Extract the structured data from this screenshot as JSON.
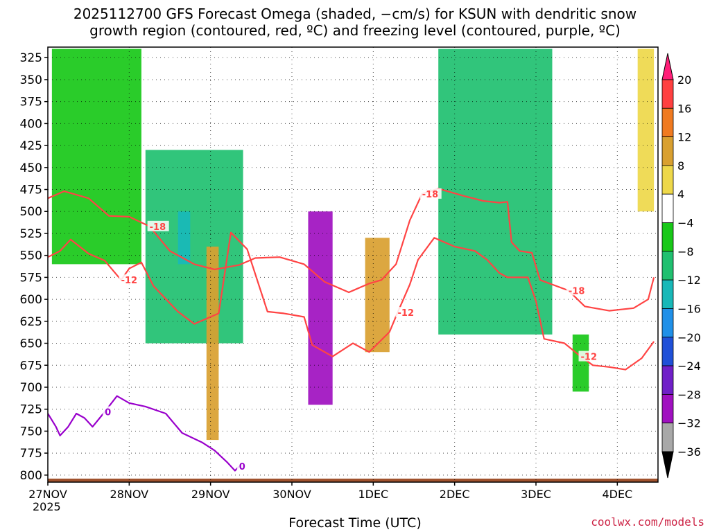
{
  "header": {
    "title_line1": "2025112700 GFS Forecast Omega (shaded, −cm/s) for KSUN with dendritic snow",
    "title_line2": "growth region (contoured, red, ºC) and freezing level (contoured, purple, ºC)"
  },
  "footer": {
    "xlabel": "Forecast Time (UTC)",
    "credit": "coolwx.com/models",
    "year": "2025"
  },
  "chart_data": {
    "type": "heatmap",
    "title": "2025112700 GFS Forecast Omega (shaded, −cm/s) for KSUN with dendritic snow growth region (contoured, red, ºC) and freezing level (contoured, purple, ºC)",
    "xlabel": "Forecast Time (UTC)",
    "ylabel": "",
    "x_ticks": [
      "27NOV",
      "28NOV",
      "29NOV",
      "30NOV",
      "1DEC",
      "2DEC",
      "3DEC",
      "4DEC"
    ],
    "x_range_days": [
      0,
      7.5
    ],
    "y_ticks": [
      325,
      350,
      375,
      400,
      425,
      450,
      475,
      500,
      525,
      550,
      575,
      600,
      625,
      650,
      675,
      700,
      725,
      750,
      775,
      800
    ],
    "y_range_hpa": [
      313,
      808
    ],
    "grid": true,
    "colorbar": {
      "labels": [
        "20",
        "16",
        "12",
        "8",
        "4",
        "−4",
        "−8",
        "−12",
        "−16",
        "−20",
        "−24",
        "−28",
        "−32",
        "−36"
      ],
      "levels": [
        20,
        16,
        12,
        8,
        4,
        -4,
        -8,
        -12,
        -16,
        -20,
        -24,
        -28,
        -32,
        -36
      ],
      "colors": [
        "#ff1e78",
        "#ff4040",
        "#f07a20",
        "#d9a030",
        "#eed84a",
        "#ffffff",
        "#18c818",
        "#20c070",
        "#18b8b8",
        "#2090e8",
        "#2050d8",
        "#7020c8",
        "#a010c0",
        "#a8a8a8",
        "#000000"
      ]
    },
    "omega_regions": [
      {
        "name": "upper-level green columns 27-28NOV",
        "x_start": 0.05,
        "x_end": 1.15,
        "p_top": 315,
        "p_bottom": 560,
        "value": -6
      },
      {
        "name": "28-29NOV descent band",
        "x_start": 1.2,
        "x_end": 2.4,
        "p_top": 430,
        "p_bottom": 650,
        "value": -9
      },
      {
        "name": "29NOV blue core",
        "x_start": 1.6,
        "x_end": 1.75,
        "p_top": 500,
        "p_bottom": 560,
        "value": -14
      },
      {
        "name": "29NOV orange sinking column",
        "x_start": 1.95,
        "x_end": 2.1,
        "p_top": 540,
        "p_bottom": 760,
        "value": 10
      },
      {
        "name": "30NOV deep upward motion",
        "x_start": 3.2,
        "x_end": 3.5,
        "p_top": 500,
        "p_bottom": 720,
        "value": -30
      },
      {
        "name": "1DEC orange column",
        "x_start": 3.9,
        "x_end": 4.2,
        "p_top": 530,
        "p_bottom": 660,
        "value": 8
      },
      {
        "name": "2-3DEC broad ascent",
        "x_start": 4.8,
        "x_end": 6.2,
        "p_top": 315,
        "p_bottom": 640,
        "value": -12
      },
      {
        "name": "3DEC low-level green",
        "x_start": 6.45,
        "x_end": 6.65,
        "p_top": 640,
        "p_bottom": 705,
        "value": -6
      },
      {
        "name": "4DEC yellow upper",
        "x_start": 7.25,
        "x_end": 7.45,
        "p_top": 315,
        "p_bottom": 500,
        "value": 5
      }
    ],
    "contours": [
      {
        "label": "-18",
        "color": "#ff4444",
        "points": [
          [
            0.0,
            485
          ],
          [
            0.2,
            477
          ],
          [
            0.5,
            485
          ],
          [
            0.75,
            505
          ],
          [
            1.0,
            506
          ],
          [
            1.25,
            517
          ],
          [
            1.5,
            545
          ],
          [
            1.8,
            560
          ],
          [
            2.05,
            566
          ],
          [
            2.35,
            561
          ],
          [
            2.55,
            553
          ],
          [
            2.85,
            552
          ],
          [
            3.15,
            560
          ],
          [
            3.4,
            580
          ],
          [
            3.7,
            592
          ],
          [
            3.95,
            582
          ],
          [
            4.1,
            578
          ],
          [
            4.28,
            560
          ],
          [
            4.45,
            510
          ],
          [
            4.6,
            480
          ],
          [
            4.8,
            474
          ],
          [
            5.1,
            482
          ],
          [
            5.35,
            488
          ],
          [
            5.55,
            490
          ],
          [
            5.65,
            489
          ],
          [
            5.7,
            535
          ],
          [
            5.8,
            545
          ],
          [
            5.95,
            547
          ],
          [
            6.05,
            578
          ],
          [
            6.4,
            590
          ],
          [
            6.6,
            608
          ],
          [
            6.9,
            613
          ],
          [
            7.2,
            610
          ],
          [
            7.38,
            600
          ],
          [
            7.45,
            575
          ]
        ]
      },
      {
        "label": "-12",
        "color": "#ff4444",
        "points": [
          [
            0.0,
            552
          ],
          [
            0.15,
            545
          ],
          [
            0.28,
            532
          ],
          [
            0.5,
            548
          ],
          [
            0.7,
            556
          ],
          [
            0.9,
            578
          ],
          [
            1.0,
            565
          ],
          [
            1.15,
            558
          ],
          [
            1.3,
            585
          ],
          [
            1.6,
            614
          ],
          [
            1.8,
            628
          ],
          [
            2.1,
            616
          ],
          [
            2.25,
            524
          ],
          [
            2.45,
            543
          ],
          [
            2.7,
            614
          ],
          [
            2.9,
            616
          ],
          [
            3.15,
            620
          ],
          [
            3.25,
            652
          ],
          [
            3.5,
            665
          ],
          [
            3.75,
            650
          ],
          [
            3.95,
            660
          ],
          [
            4.2,
            637
          ],
          [
            4.3,
            615
          ],
          [
            4.45,
            583
          ],
          [
            4.55,
            555
          ],
          [
            4.75,
            530
          ],
          [
            5.0,
            540
          ],
          [
            5.25,
            545
          ],
          [
            5.4,
            555
          ],
          [
            5.55,
            570
          ],
          [
            5.65,
            575
          ],
          [
            5.9,
            575
          ],
          [
            6.0,
            602
          ],
          [
            6.1,
            645
          ],
          [
            6.35,
            650
          ],
          [
            6.55,
            665
          ],
          [
            6.7,
            675
          ],
          [
            6.9,
            677
          ],
          [
            7.1,
            680
          ],
          [
            7.3,
            667
          ],
          [
            7.45,
            648
          ]
        ]
      },
      {
        "label": "0",
        "color": "#9900cc",
        "points": [
          [
            0.0,
            730
          ],
          [
            0.1,
            745
          ],
          [
            0.15,
            755
          ],
          [
            0.25,
            745
          ],
          [
            0.35,
            730
          ],
          [
            0.45,
            735
          ],
          [
            0.55,
            745
          ],
          [
            0.7,
            728
          ],
          [
            0.85,
            710
          ],
          [
            1.0,
            718
          ],
          [
            1.2,
            722
          ],
          [
            1.45,
            730
          ],
          [
            1.65,
            752
          ],
          [
            1.9,
            763
          ],
          [
            2.05,
            772
          ],
          [
            2.2,
            785
          ],
          [
            2.3,
            795
          ],
          [
            2.35,
            790
          ]
        ]
      }
    ]
  }
}
